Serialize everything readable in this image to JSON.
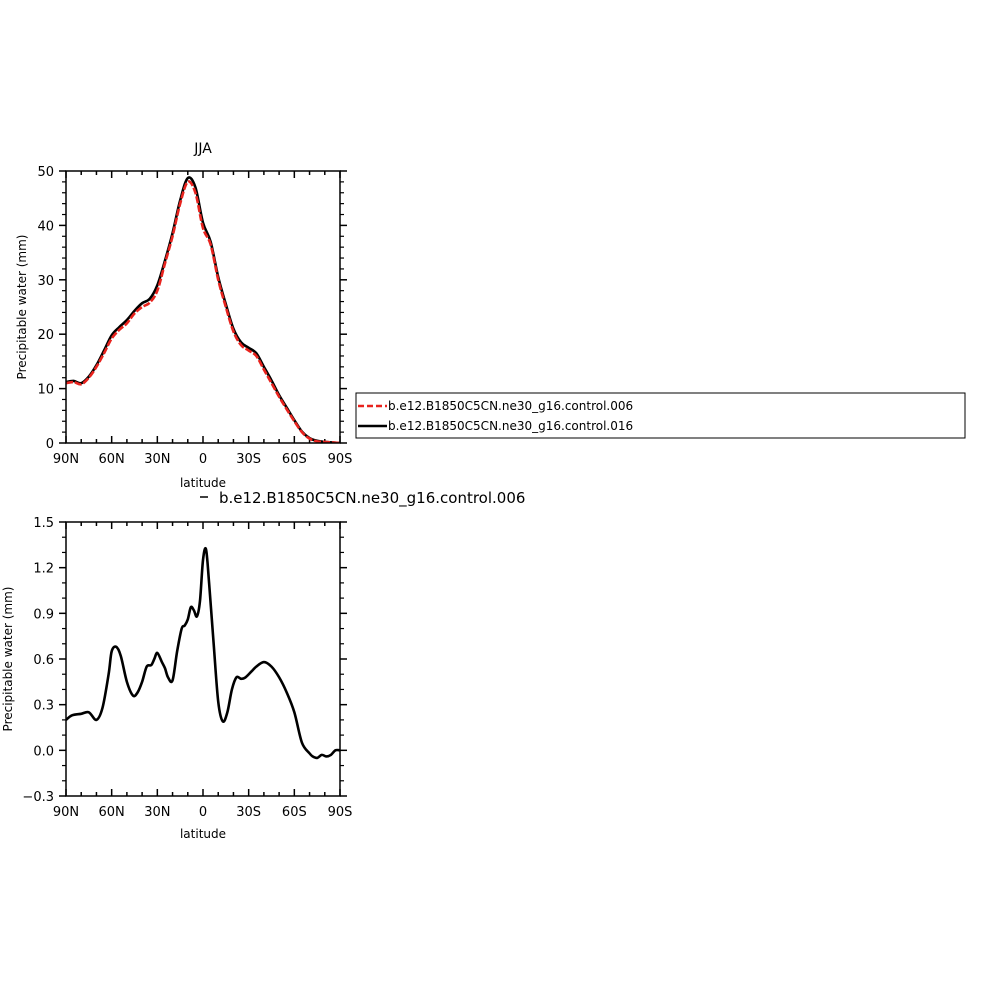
{
  "chart_data": [
    {
      "type": "line",
      "title": "JJA",
      "xlabel": "latitude",
      "ylabel": "Precipitable water (mm)",
      "xlim": [
        90,
        -90
      ],
      "ylim": [
        0,
        50
      ],
      "xticks": [
        {
          "value": 90,
          "label": "90N"
        },
        {
          "value": 60,
          "label": "60N"
        },
        {
          "value": 30,
          "label": "30N"
        },
        {
          "value": 0,
          "label": "0"
        },
        {
          "value": -30,
          "label": "30S"
        },
        {
          "value": -60,
          "label": "60S"
        },
        {
          "value": -90,
          "label": "90S"
        }
      ],
      "yticks": [
        {
          "value": 0,
          "label": "0"
        },
        {
          "value": 10,
          "label": "10"
        },
        {
          "value": 20,
          "label": "20"
        },
        {
          "value": 30,
          "label": "30"
        },
        {
          "value": 40,
          "label": "40"
        },
        {
          "value": 50,
          "label": "50"
        }
      ],
      "legend": {
        "placement": "right",
        "entries": [
          {
            "label": "b.e12.B1850C5CN.ne30_g16.control.006",
            "color": "#e8231e",
            "dashed": true
          },
          {
            "label": "b.e12.B1850C5CN.ne30_g16.control.016",
            "color": "#000000",
            "dashed": false
          }
        ]
      },
      "series": [
        {
          "name": "b.e12.B1850C5CN.ne30_g16.control.006",
          "color": "#e8231e",
          "dashed": true,
          "x": [
            90,
            85,
            80,
            75,
            70,
            65,
            60,
            55,
            50,
            45,
            40,
            35,
            30,
            25,
            20,
            15,
            10,
            5,
            0,
            -5,
            -10,
            -15,
            -20,
            -25,
            -30,
            -35,
            -40,
            -45,
            -50,
            -55,
            -60,
            -65,
            -70,
            -75,
            -80,
            -85,
            -90
          ],
          "y": [
            11.0,
            11.2,
            10.8,
            12.0,
            14.0,
            16.5,
            19.2,
            20.8,
            22.0,
            23.8,
            25.0,
            25.8,
            28.0,
            33.0,
            38.0,
            44.0,
            48.0,
            46.0,
            39.5,
            36.5,
            30.0,
            25.0,
            20.5,
            18.0,
            17.0,
            16.0,
            13.5,
            11.0,
            8.5,
            6.2,
            4.0,
            2.0,
            0.8,
            0.3,
            0.2,
            0.1,
            0.0
          ]
        },
        {
          "name": "b.e12.B1850C5CN.ne30_g16.control.016",
          "color": "#000000",
          "dashed": false,
          "x": [
            90,
            85,
            80,
            75,
            70,
            65,
            60,
            55,
            50,
            45,
            40,
            35,
            30,
            25,
            20,
            15,
            10,
            5,
            0,
            -5,
            -10,
            -15,
            -20,
            -25,
            -30,
            -35,
            -40,
            -45,
            -50,
            -55,
            -60,
            -65,
            -70,
            -75,
            -80,
            -85,
            -90
          ],
          "y": [
            11.2,
            11.4,
            11.0,
            12.2,
            14.3,
            17.0,
            19.8,
            21.3,
            22.6,
            24.3,
            25.7,
            26.5,
            29.0,
            33.5,
            38.6,
            44.6,
            48.7,
            47.0,
            40.5,
            37.0,
            30.5,
            25.5,
            21.0,
            18.5,
            17.5,
            16.5,
            14.0,
            11.5,
            8.8,
            6.5,
            4.2,
            2.1,
            0.9,
            0.4,
            0.2,
            0.1,
            0.0
          ]
        }
      ]
    },
    {
      "type": "line",
      "title": "b.e12.B1850C5CN.ne30_g16.control.006",
      "xlabel": "latitude",
      "ylabel": "Precipitable water (mm)",
      "xlim": [
        90,
        -90
      ],
      "ylim": [
        -0.3,
        1.5
      ],
      "xticks": [
        {
          "value": 90,
          "label": "90N"
        },
        {
          "value": 60,
          "label": "60N"
        },
        {
          "value": 30,
          "label": "30N"
        },
        {
          "value": 0,
          "label": "0"
        },
        {
          "value": -30,
          "label": "30S"
        },
        {
          "value": -60,
          "label": "60S"
        },
        {
          "value": -90,
          "label": "90S"
        }
      ],
      "yticks": [
        {
          "value": -0.3,
          "label": "−0.3"
        },
        {
          "value": 0.0,
          "label": "0.0"
        },
        {
          "value": 0.3,
          "label": "0.3"
        },
        {
          "value": 0.6,
          "label": "0.6"
        },
        {
          "value": 0.9,
          "label": "0.9"
        },
        {
          "value": 1.2,
          "label": "1.2"
        },
        {
          "value": 1.5,
          "label": "1.5"
        }
      ],
      "series": [
        {
          "name": "b.e12.B1850C5CN.ne30_g16.control.006",
          "color": "#000000",
          "dashed": false,
          "x": [
            90,
            86,
            80,
            75,
            70,
            66,
            62,
            60,
            57,
            54,
            50,
            46,
            43,
            40,
            37,
            34,
            32,
            30,
            27,
            25,
            23,
            20,
            17,
            14,
            12,
            10,
            8,
            6,
            4,
            2,
            0,
            -2,
            -4,
            -7,
            -10,
            -13,
            -16,
            -19,
            -22,
            -25,
            -28,
            -32,
            -35,
            -40,
            -45,
            -50,
            -55,
            -60,
            -65,
            -70,
            -72,
            -75,
            -78,
            -81,
            -84,
            -87,
            -90
          ],
          "y": [
            0.2,
            0.23,
            0.24,
            0.25,
            0.2,
            0.28,
            0.5,
            0.65,
            0.68,
            0.62,
            0.45,
            0.36,
            0.38,
            0.45,
            0.55,
            0.56,
            0.6,
            0.64,
            0.58,
            0.54,
            0.48,
            0.46,
            0.65,
            0.8,
            0.82,
            0.86,
            0.94,
            0.92,
            0.88,
            0.98,
            1.25,
            1.32,
            1.1,
            0.7,
            0.32,
            0.19,
            0.25,
            0.4,
            0.48,
            0.47,
            0.48,
            0.52,
            0.55,
            0.58,
            0.55,
            0.48,
            0.38,
            0.25,
            0.05,
            -0.02,
            -0.04,
            -0.05,
            -0.03,
            -0.04,
            -0.03,
            0.0,
            0.0
          ]
        }
      ]
    }
  ]
}
